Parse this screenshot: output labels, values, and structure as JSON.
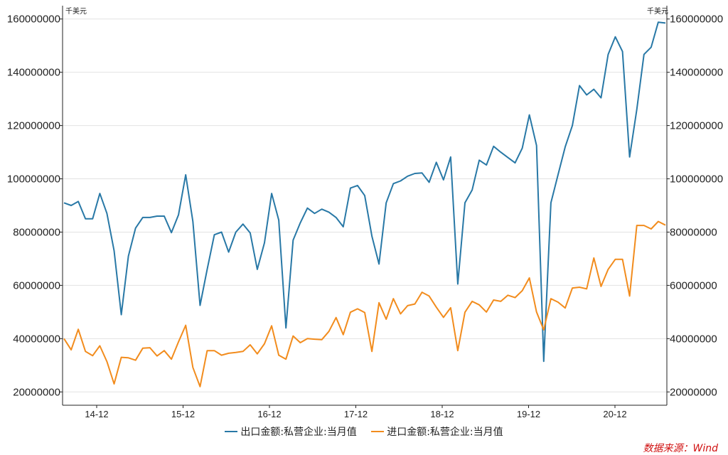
{
  "chart_data": {
    "type": "line",
    "unit_left": "千美元",
    "unit_right": "千美元",
    "ylim": [
      15000000,
      165000000
    ],
    "yticks": [
      20000000,
      40000000,
      60000000,
      80000000,
      100000000,
      120000000,
      140000000,
      160000000
    ],
    "ytick_labels": [
      "20000000",
      "40000000",
      "60000000",
      "80000000",
      "100000000",
      "120000000",
      "140000000",
      "160000000"
    ],
    "xtick_labels": [
      "14-12",
      "15-12",
      "16-12",
      "17-12",
      "18-12",
      "19-12",
      "20-12"
    ],
    "grid": "horizontal",
    "legend_position": "bottom",
    "colors": {
      "export": "#2878a6",
      "import": "#f28c1d"
    },
    "series": [
      {
        "name": "出口金额:私营企业:当月值",
        "values": [
          91000000,
          90000000,
          91500000,
          85000000,
          85000000,
          94500000,
          87000000,
          73000000,
          49000000,
          71000000,
          81500000,
          85500000,
          85500000,
          86000000,
          86000000,
          79800000,
          86500000,
          101500000,
          84000000,
          52500000,
          66000000,
          79000000,
          80000000,
          72500000,
          80000000,
          83000000,
          79700000,
          66000000,
          76000000,
          94500000,
          84500000,
          44000000,
          77000000,
          83500000,
          89000000,
          87000000,
          88600000,
          87500000,
          85500000,
          82000000,
          96500000,
          97500000,
          93700000,
          78500000,
          68000000,
          91000000,
          98200000,
          99200000,
          101000000,
          102000000,
          102200000,
          98700000,
          106200000,
          99600000,
          108200000,
          60500000,
          91000000,
          95800000,
          107000000,
          105200000,
          112200000,
          110000000,
          108000000,
          106000000,
          111500000,
          124000000,
          112500000,
          31500000,
          91000000,
          101500000,
          112000000,
          120000000,
          135000000,
          131500000,
          133600000,
          130400000,
          146700000,
          153300000,
          147800000,
          108200000,
          126000000,
          146700000,
          149400000,
          158800000,
          158500000
        ]
      },
      {
        "name": "进口金额:私营企业:当月值",
        "values": [
          40000000,
          35800000,
          43500000,
          35200000,
          33600000,
          37300000,
          31400000,
          23000000,
          33000000,
          32800000,
          31900000,
          36400000,
          36600000,
          33500000,
          35500000,
          32300000,
          38800000,
          45000000,
          29200000,
          22000000,
          35500000,
          35500000,
          33800000,
          34500000,
          34800000,
          35200000,
          37700000,
          34300000,
          38100000,
          44800000,
          33800000,
          32300000,
          41000000,
          38500000,
          40000000,
          39800000,
          39600000,
          42700000,
          47900000,
          41500000,
          49900000,
          51200000,
          49800000,
          35200000,
          53500000,
          47300000,
          55000000,
          49300000,
          52400000,
          53000000,
          57400000,
          56000000,
          51800000,
          48000000,
          51600000,
          35500000,
          49900000,
          54000000,
          52700000,
          50000000,
          54500000,
          54000000,
          56300000,
          55400000,
          58000000,
          62800000,
          50000000,
          43300000,
          55000000,
          53700000,
          51500000,
          59000000,
          59300000,
          58700000,
          70300000,
          59600000,
          66000000,
          69800000,
          69800000,
          56000000,
          82500000,
          82500000,
          81200000,
          84000000,
          82600000
        ]
      }
    ]
  },
  "source": "数据来源：Wind"
}
